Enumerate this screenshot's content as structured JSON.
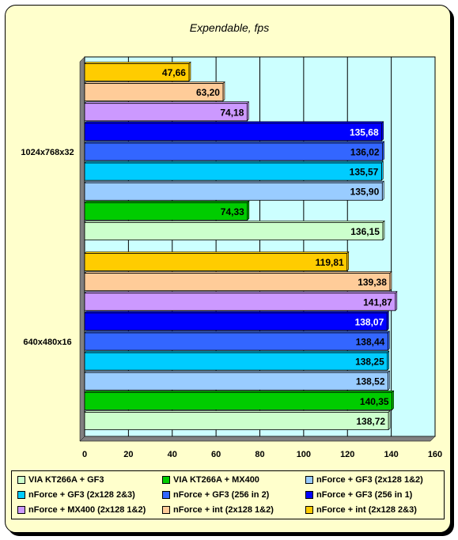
{
  "chart_data": {
    "type": "bar",
    "orientation": "horizontal",
    "title": "Expendable, fps",
    "xlabel": "",
    "ylabel": "",
    "xlim": [
      0,
      160
    ],
    "x_ticks": [
      "0",
      "20",
      "40",
      "60",
      "80",
      "100",
      "120",
      "140",
      "160"
    ],
    "grid": true,
    "categories": [
      "1024x768x32",
      "640x480x16"
    ],
    "series": [
      {
        "name": "VIA KT266A + GF3",
        "color": "#ccffcc",
        "values": [
          136.15,
          138.72
        ],
        "labels": [
          "136,15",
          "138,72"
        ]
      },
      {
        "name": "VIA KT266A + MX400",
        "color": "#00cc00",
        "values": [
          74.33,
          140.35
        ],
        "labels": [
          "74,33",
          "140,35"
        ]
      },
      {
        "name": "nForce + GF3 (2x128 1&2)",
        "color": "#99ccff",
        "values": [
          135.9,
          138.52
        ],
        "labels": [
          "135,90",
          "138,52"
        ]
      },
      {
        "name": "nForce + GF3 (2x128 2&3)",
        "color": "#00ccff",
        "values": [
          135.57,
          138.25
        ],
        "labels": [
          "135,57",
          "138,25"
        ]
      },
      {
        "name": "nForce + GF3 (256 in 2)",
        "color": "#3366ff",
        "values": [
          136.02,
          138.44
        ],
        "labels": [
          "136,02",
          "138,44"
        ]
      },
      {
        "name": "nForce + GF3 (256 in 1)",
        "color": "#0000ff",
        "values": [
          135.68,
          138.07
        ],
        "labels": [
          "135,68",
          "138,07"
        ]
      },
      {
        "name": "nForce + MX400 (2x128 1&2)",
        "color": "#cc99ff",
        "values": [
          74.18,
          141.87
        ],
        "labels": [
          "74,18",
          "141,87"
        ]
      },
      {
        "name": "nForce + int (2x128 1&2)",
        "color": "#ffcc99",
        "values": [
          63.2,
          139.38
        ],
        "labels": [
          "63,20",
          "139,38"
        ]
      },
      {
        "name": "nForce + int (2x128 2&3)",
        "color": "#ffcc00",
        "values": [
          47.66,
          119.81
        ],
        "labels": [
          "47,66",
          "119,81"
        ]
      }
    ],
    "legend": "bottom",
    "colors": {
      "frame_background": "#ffffcc",
      "plot_background": "#ccffff"
    }
  }
}
